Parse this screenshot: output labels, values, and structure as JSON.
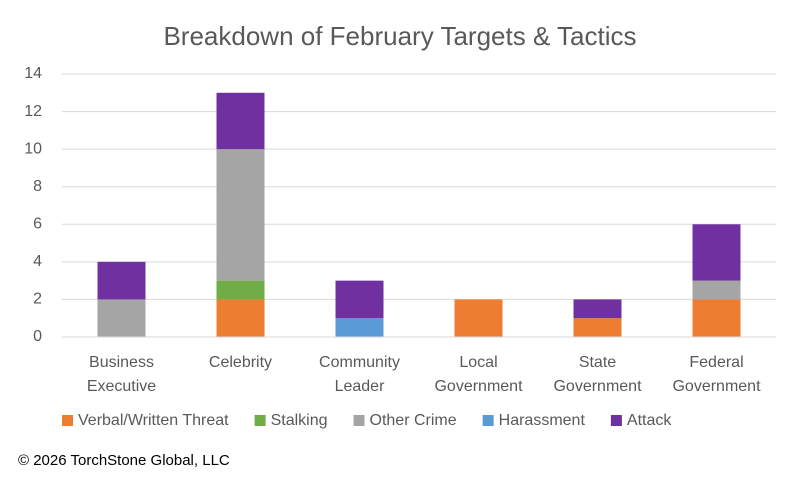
{
  "chart_data": {
    "type": "stacked_bar",
    "title": "Breakdown of February Targets & Tactics",
    "categories": [
      "Business Executive",
      "Celebrity",
      "Community Leader",
      "Local Government",
      "State Government",
      "Federal Government"
    ],
    "series": [
      {
        "name": "Verbal/Written Threat",
        "color": "#ed7d31",
        "values": [
          0,
          2,
          0,
          2,
          1,
          2
        ]
      },
      {
        "name": "Stalking",
        "color": "#70ad47",
        "values": [
          0,
          1,
          0,
          0,
          0,
          0
        ]
      },
      {
        "name": "Other Crime",
        "color": "#a5a5a5",
        "values": [
          2,
          7,
          0,
          0,
          0,
          1
        ]
      },
      {
        "name": "Harassment",
        "color": "#5b9bd5",
        "values": [
          0,
          0,
          1,
          0,
          0,
          0
        ]
      },
      {
        "name": "Attack",
        "color": "#7030a0",
        "values": [
          2,
          3,
          2,
          0,
          1,
          3
        ]
      }
    ],
    "ylim": [
      0,
      14
    ],
    "yticks": [
      0,
      2,
      4,
      6,
      8,
      10,
      12,
      14
    ],
    "grid": true,
    "legend": "bottom"
  },
  "footer": "© 2026 TorchStone Global, LLC"
}
